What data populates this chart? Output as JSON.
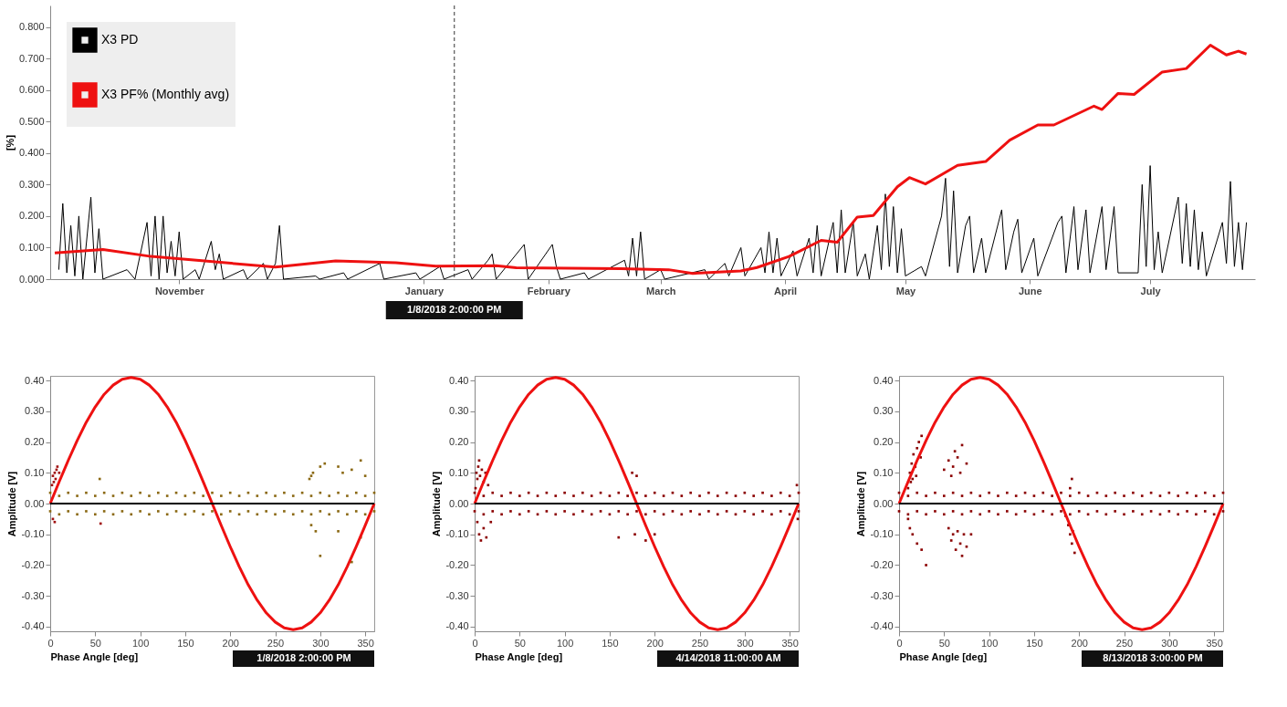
{
  "chart_data": [
    {
      "type": "line",
      "ylabel": "[%]",
      "legend": "top left",
      "xlim": [
        "2017-10-01",
        "2018-07-26"
      ],
      "xticks": [
        {
          "value": "2017-11-01",
          "label": "November"
        },
        {
          "value": "2018-01-01",
          "label": "January"
        },
        {
          "value": "2018-02-01",
          "label": "February"
        },
        {
          "value": "2018-03-01",
          "label": "March"
        },
        {
          "value": "2018-04-01",
          "label": "April"
        },
        {
          "value": "2018-05-01",
          "label": "May"
        },
        {
          "value": "2018-06-01",
          "label": "June"
        },
        {
          "value": "2018-07-01",
          "label": "July"
        }
      ],
      "ylim": [
        0,
        0.868
      ],
      "yticks": [
        {
          "value": 0,
          "label": "0.000"
        },
        {
          "value": 0.1,
          "label": "0.100"
        },
        {
          "value": 0.2,
          "label": "0.200"
        },
        {
          "value": 0.3,
          "label": "0.300"
        },
        {
          "value": 0.4,
          "label": "0.400"
        },
        {
          "value": 0.5,
          "label": "0.500"
        },
        {
          "value": 0.6,
          "label": "0.600"
        },
        {
          "value": 0.7,
          "label": "0.700"
        },
        {
          "value": 0.8,
          "label": "0.800"
        }
      ],
      "ref_lines": [
        {
          "axis": "x",
          "value": "2018-01-08T14:00",
          "label": "1/8/2018 2:00:00 PM",
          "color": "#333333",
          "line_style": "dashed"
        }
      ],
      "series": [
        {
          "name": "X3 PD",
          "color": "#000000",
          "x": [
            "2017-10-02",
            "2017-10-03",
            "2017-10-04",
            "2017-10-05",
            "2017-10-06",
            "2017-10-07",
            "2017-10-08",
            "2017-10-10",
            "2017-10-11",
            "2017-10-12",
            "2017-10-13",
            "2017-10-19",
            "2017-10-21",
            "2017-10-24",
            "2017-10-25",
            "2017-10-26",
            "2017-10-27",
            "2017-10-28",
            "2017-10-29",
            "2017-10-30",
            "2017-10-31",
            "2017-11-01",
            "2017-11-02",
            "2017-11-05",
            "2017-11-06",
            "2017-11-09",
            "2017-11-10",
            "2017-11-11",
            "2017-11-12",
            "2017-11-17",
            "2017-11-18",
            "2017-11-22",
            "2017-11-23",
            "2017-11-25",
            "2017-11-26",
            "2017-11-27",
            "2017-12-05",
            "2017-12-06",
            "2017-12-12",
            "2017-12-13",
            "2017-12-21",
            "2017-12-22",
            "2017-12-30",
            "2017-12-31",
            "2018-01-05",
            "2018-01-06",
            "2018-01-12",
            "2018-01-13",
            "2018-01-17",
            "2018-01-18",
            "2018-01-19",
            "2018-01-26",
            "2018-01-27",
            "2018-02-02",
            "2018-02-03",
            "2018-02-04",
            "2018-02-10",
            "2018-02-11",
            "2018-02-20",
            "2018-02-21",
            "2018-02-22",
            "2018-02-23",
            "2018-02-24",
            "2018-02-25",
            "2018-03-01",
            "2018-03-02",
            "2018-03-12",
            "2018-03-13",
            "2018-03-17",
            "2018-03-18",
            "2018-03-21",
            "2018-03-22",
            "2018-03-26",
            "2018-03-27",
            "2018-03-28",
            "2018-03-29",
            "2018-03-30",
            "2018-03-31",
            "2018-04-03",
            "2018-04-04",
            "2018-04-07",
            "2018-04-08",
            "2018-04-09",
            "2018-04-10",
            "2018-04-13",
            "2018-04-14",
            "2018-04-15",
            "2018-04-16",
            "2018-04-18",
            "2018-04-19",
            "2018-04-21",
            "2018-04-22",
            "2018-04-24",
            "2018-04-25",
            "2018-04-26",
            "2018-04-27",
            "2018-04-28",
            "2018-04-29",
            "2018-04-30",
            "2018-05-01",
            "2018-05-05",
            "2018-05-06",
            "2018-05-10",
            "2018-05-11",
            "2018-05-12",
            "2018-05-13",
            "2018-05-14",
            "2018-05-16",
            "2018-05-17",
            "2018-05-18",
            "2018-05-20",
            "2018-05-21",
            "2018-05-25",
            "2018-05-26",
            "2018-05-28",
            "2018-05-29",
            "2018-05-30",
            "2018-06-02",
            "2018-06-03",
            "2018-06-08",
            "2018-06-09",
            "2018-06-10",
            "2018-06-12",
            "2018-06-13",
            "2018-06-15",
            "2018-06-16",
            "2018-06-19",
            "2018-06-20",
            "2018-06-22",
            "2018-06-23",
            "2018-06-28",
            "2018-06-29",
            "2018-06-30",
            "2018-07-01",
            "2018-07-02",
            "2018-07-03",
            "2018-07-04",
            "2018-07-08",
            "2018-07-09",
            "2018-07-10",
            "2018-07-11",
            "2018-07-12",
            "2018-07-13",
            "2018-07-14",
            "2018-07-15",
            "2018-07-19",
            "2018-07-20",
            "2018-07-21",
            "2018-07-22",
            "2018-07-23",
            "2018-07-24",
            "2018-07-25"
          ],
          "values": [
            0.03,
            0.24,
            0.02,
            0.17,
            0.01,
            0.2,
            0,
            0.26,
            0.02,
            0.16,
            0,
            0.03,
            0,
            0.18,
            0.01,
            0.2,
            0,
            0.2,
            0.02,
            0.12,
            0.01,
            0.15,
            0,
            0.03,
            0,
            0.12,
            0.03,
            0.08,
            0,
            0.03,
            0,
            0.05,
            0,
            0.05,
            0.17,
            0,
            0.01,
            0,
            0.02,
            0,
            0.05,
            0,
            0.02,
            0,
            0.04,
            0,
            0.03,
            0,
            0.06,
            0.08,
            0,
            0.11,
            0,
            0.11,
            0.04,
            0,
            0.02,
            0,
            0.06,
            0.01,
            0.13,
            0.01,
            0.15,
            0,
            0.03,
            0,
            0.03,
            0,
            0.05,
            0.01,
            0.1,
            0.01,
            0.1,
            0.02,
            0.15,
            0.02,
            0.13,
            0.01,
            0.09,
            0.01,
            0.13,
            0.02,
            0.17,
            0.01,
            0.18,
            0.02,
            0.22,
            0.02,
            0.18,
            0.01,
            0.08,
            0,
            0.17,
            0.03,
            0.27,
            0.04,
            0.23,
            0.02,
            0.16,
            0.01,
            0.04,
            0.01,
            0.2,
            0.32,
            0.04,
            0.28,
            0.02,
            0.17,
            0.2,
            0.02,
            0.13,
            0.02,
            0.22,
            0.03,
            0.15,
            0.19,
            0.02,
            0.13,
            0.01,
            0.18,
            0.2,
            0.02,
            0.23,
            0.03,
            0.22,
            0.02,
            0.23,
            0.03,
            0.23,
            0.02,
            0.02,
            0.3,
            0.04,
            0.36,
            0.03,
            0.15,
            0.02,
            0.26,
            0.05,
            0.24,
            0.04,
            0.22,
            0.03,
            0.15,
            0.01,
            0.18,
            0.05,
            0.31,
            0.04,
            0.18,
            0.03,
            0.18
          ]
        },
        {
          "name": "X3 PF% (Monthly avg)",
          "color": "#ee1111",
          "x": [
            "2017-10-01",
            "2017-10-13",
            "2017-10-25",
            "2017-11-08",
            "2017-11-25",
            "2017-12-10",
            "2017-12-25",
            "2018-01-04",
            "2018-01-19",
            "2018-01-24",
            "2018-02-19",
            "2018-03-03",
            "2018-03-09",
            "2018-03-21",
            "2018-03-25",
            "2018-04-02",
            "2018-04-10",
            "2018-04-14",
            "2018-04-19",
            "2018-04-23",
            "2018-04-29",
            "2018-05-02",
            "2018-05-06",
            "2018-05-14",
            "2018-05-21",
            "2018-05-27",
            "2018-06-03",
            "2018-06-07",
            "2018-06-17",
            "2018-06-19",
            "2018-06-23",
            "2018-06-27",
            "2018-07-04",
            "2018-07-10",
            "2018-07-16",
            "2018-07-20",
            "2018-07-23",
            "2018-07-25"
          ],
          "values": [
            0.083,
            0.094,
            0.072,
            0.057,
            0.038,
            0.058,
            0.052,
            0.041,
            0.043,
            0.036,
            0.033,
            0.03,
            0.018,
            0.026,
            0.037,
            0.072,
            0.123,
            0.117,
            0.197,
            0.202,
            0.293,
            0.322,
            0.302,
            0.361,
            0.373,
            0.441,
            0.489,
            0.489,
            0.549,
            0.538,
            0.589,
            0.586,
            0.657,
            0.668,
            0.742,
            0.711,
            0.723,
            0.714
          ]
        }
      ]
    },
    {
      "type": "scatter",
      "xlabel": "Phase Angle [deg]",
      "ylabel": "Amplitude [V]",
      "xlim": [
        0,
        360
      ],
      "xticks": [
        0,
        50,
        100,
        150,
        200,
        250,
        300,
        350
      ],
      "ylim": [
        -0.415,
        0.415
      ],
      "yticks": [
        {
          "value": 0.4,
          "label": "0.40"
        },
        {
          "value": 0.3,
          "label": "0.30"
        },
        {
          "value": 0.2,
          "label": "0.20"
        },
        {
          "value": 0.1,
          "label": "0.10"
        },
        {
          "value": 0,
          "label": "0.00"
        },
        {
          "value": -0.1,
          "label": "-0.10"
        },
        {
          "value": -0.2,
          "label": "-0.20"
        },
        {
          "value": -0.3,
          "label": "-0.30"
        },
        {
          "value": -0.4,
          "label": "-0.40"
        }
      ],
      "ref_lines": [
        {
          "axis": "y",
          "value": 0,
          "color": "#000000"
        }
      ],
      "annotations": [
        "1/8/2018 2:00:00 PM"
      ],
      "series": [
        {
          "marker": "square",
          "color": "#8b6914",
          "x": [
            0,
            10,
            20,
            30,
            40,
            50,
            60,
            70,
            80,
            90,
            100,
            110,
            120,
            130,
            140,
            150,
            160,
            170,
            180,
            190,
            200,
            210,
            220,
            230,
            240,
            250,
            260,
            270,
            280,
            290,
            300,
            310,
            320,
            330,
            340,
            350,
            360,
            0,
            10,
            20,
            30,
            40,
            50,
            60,
            70,
            80,
            90,
            100,
            110,
            120,
            130,
            140,
            150,
            160,
            170,
            180,
            190,
            200,
            210,
            220,
            230,
            240,
            250,
            260,
            270,
            280,
            290,
            300,
            310,
            320,
            330,
            340,
            350,
            360,
            290,
            292,
            288,
            300,
            305,
            320,
            325,
            335,
            345,
            350,
            290,
            295,
            300,
            320,
            335,
            345,
            55
          ],
          "values": [
            0.035,
            0.025,
            0.035,
            0.025,
            0.035,
            0.025,
            0.035,
            0.025,
            0.035,
            0.025,
            0.035,
            0.025,
            0.035,
            0.025,
            0.035,
            0.025,
            0.035,
            0.025,
            0.035,
            0.025,
            0.035,
            0.025,
            0.035,
            0.025,
            0.035,
            0.025,
            0.035,
            0.025,
            0.035,
            0.025,
            0.035,
            0.025,
            0.035,
            0.025,
            0.035,
            0.025,
            0.035,
            -0.025,
            -0.035,
            -0.025,
            -0.035,
            -0.025,
            -0.035,
            -0.025,
            -0.035,
            -0.025,
            -0.035,
            -0.025,
            -0.035,
            -0.025,
            -0.035,
            -0.025,
            -0.035,
            -0.025,
            -0.035,
            -0.025,
            -0.035,
            -0.025,
            -0.035,
            -0.025,
            -0.035,
            -0.025,
            -0.035,
            -0.025,
            -0.035,
            -0.025,
            -0.035,
            -0.025,
            -0.035,
            -0.025,
            -0.035,
            -0.025,
            -0.035,
            -0.025,
            0.09,
            0.1,
            0.08,
            0.12,
            0.13,
            0.12,
            0.1,
            0.11,
            0.14,
            0.09,
            -0.07,
            -0.09,
            -0.17,
            -0.09,
            -0.19,
            -0.11,
            0.08
          ]
        },
        {
          "marker": "square",
          "color": "#a01010",
          "x": [
            2,
            3,
            4,
            5,
            6,
            7,
            8,
            10,
            3,
            5,
            56
          ],
          "values": [
            0.06,
            0.09,
            0.07,
            0.1,
            0.08,
            0.11,
            0.12,
            0.1,
            -0.05,
            -0.06,
            -0.065
          ]
        },
        {
          "type": "line",
          "color": "#ee1111",
          "x": [
            0,
            10,
            20,
            30,
            40,
            50,
            60,
            70,
            80,
            90,
            100,
            110,
            120,
            130,
            140,
            150,
            160,
            170,
            180,
            190,
            200,
            210,
            220,
            230,
            240,
            250,
            260,
            270,
            280,
            290,
            300,
            310,
            320,
            330,
            340,
            350,
            360
          ],
          "values": [
            0,
            0.071,
            0.14,
            0.205,
            0.264,
            0.314,
            0.355,
            0.385,
            0.404,
            0.41,
            0.404,
            0.385,
            0.355,
            0.314,
            0.264,
            0.205,
            0.14,
            0.071,
            0,
            -0.071,
            -0.14,
            -0.205,
            -0.264,
            -0.314,
            -0.355,
            -0.385,
            -0.404,
            -0.41,
            -0.404,
            -0.385,
            -0.355,
            -0.314,
            -0.264,
            -0.205,
            -0.14,
            -0.071,
            0
          ]
        }
      ]
    },
    {
      "type": "scatter",
      "xlabel": "Phase Angle [deg]",
      "ylabel": "Amplitude [V]",
      "xlim": [
        0,
        360
      ],
      "xticks": [
        0,
        50,
        100,
        150,
        200,
        250,
        300,
        350
      ],
      "ylim": [
        -0.415,
        0.415
      ],
      "yticks": [
        {
          "value": 0.4,
          "label": "0.40"
        },
        {
          "value": 0.3,
          "label": "0.30"
        },
        {
          "value": 0.2,
          "label": "0.20"
        },
        {
          "value": 0.1,
          "label": "0.10"
        },
        {
          "value": 0,
          "label": "0.00"
        },
        {
          "value": -0.1,
          "label": "-0.10"
        },
        {
          "value": -0.2,
          "label": "-0.20"
        },
        {
          "value": -0.3,
          "label": "-0.30"
        },
        {
          "value": -0.4,
          "label": "-0.40"
        }
      ],
      "ref_lines": [
        {
          "axis": "y",
          "value": 0,
          "color": "#000000"
        }
      ],
      "annotations": [
        "4/14/2018 11:00:00 AM"
      ],
      "series": [
        {
          "marker": "square",
          "color": "#8b0000",
          "x": [
            0,
            10,
            20,
            30,
            40,
            50,
            60,
            70,
            80,
            90,
            100,
            110,
            120,
            130,
            140,
            150,
            160,
            170,
            180,
            190,
            200,
            210,
            220,
            230,
            240,
            250,
            260,
            270,
            280,
            290,
            300,
            310,
            320,
            330,
            340,
            350,
            360,
            0,
            10,
            20,
            30,
            40,
            50,
            60,
            70,
            80,
            90,
            100,
            110,
            120,
            130,
            140,
            150,
            160,
            170,
            180,
            190,
            200,
            210,
            220,
            230,
            240,
            250,
            260,
            270,
            280,
            290,
            300,
            310,
            320,
            330,
            340,
            350,
            360,
            1,
            2,
            3,
            4,
            5,
            6,
            8,
            10,
            12,
            15,
            3,
            5,
            7,
            10,
            13,
            18,
            175,
            180,
            178,
            190,
            200,
            160,
            358,
            359
          ],
          "values": [
            0.035,
            0.025,
            0.035,
            0.025,
            0.035,
            0.025,
            0.035,
            0.025,
            0.035,
            0.025,
            0.035,
            0.025,
            0.035,
            0.025,
            0.035,
            0.025,
            0.035,
            0.025,
            0.035,
            0.025,
            0.035,
            0.025,
            0.035,
            0.025,
            0.035,
            0.025,
            0.035,
            0.025,
            0.035,
            0.025,
            0.035,
            0.025,
            0.035,
            0.025,
            0.035,
            0.025,
            0.035,
            -0.025,
            -0.035,
            -0.025,
            -0.035,
            -0.025,
            -0.035,
            -0.025,
            -0.035,
            -0.025,
            -0.035,
            -0.025,
            -0.035,
            -0.025,
            -0.035,
            -0.025,
            -0.035,
            -0.025,
            -0.035,
            -0.025,
            -0.035,
            -0.025,
            -0.035,
            -0.025,
            -0.035,
            -0.025,
            -0.035,
            -0.025,
            -0.035,
            -0.025,
            -0.035,
            -0.025,
            -0.035,
            -0.025,
            -0.035,
            -0.025,
            -0.035,
            -0.025,
            0.05,
            0.1,
            0.08,
            0.12,
            0.14,
            0.09,
            0.11,
            0.07,
            0.1,
            0.06,
            -0.06,
            -0.1,
            -0.12,
            -0.08,
            -0.11,
            -0.06,
            0.1,
            0.09,
            -0.1,
            -0.12,
            -0.1,
            -0.11,
            0.06,
            -0.05
          ]
        },
        {
          "type": "line",
          "color": "#ee1111",
          "x": [
            0,
            10,
            20,
            30,
            40,
            50,
            60,
            70,
            80,
            90,
            100,
            110,
            120,
            130,
            140,
            150,
            160,
            170,
            180,
            190,
            200,
            210,
            220,
            230,
            240,
            250,
            260,
            270,
            280,
            290,
            300,
            310,
            320,
            330,
            340,
            350,
            360
          ],
          "values": [
            0,
            0.071,
            0.14,
            0.205,
            0.264,
            0.314,
            0.355,
            0.385,
            0.404,
            0.41,
            0.404,
            0.385,
            0.355,
            0.314,
            0.264,
            0.205,
            0.14,
            0.071,
            0,
            -0.071,
            -0.14,
            -0.205,
            -0.264,
            -0.314,
            -0.355,
            -0.385,
            -0.404,
            -0.41,
            -0.404,
            -0.385,
            -0.355,
            -0.314,
            -0.264,
            -0.205,
            -0.14,
            -0.071,
            0
          ]
        }
      ]
    },
    {
      "type": "scatter",
      "xlabel": "Phase Angle [deg]",
      "ylabel": "Amplitude [V]",
      "xlim": [
        0,
        360
      ],
      "xticks": [
        0,
        50,
        100,
        150,
        200,
        250,
        300,
        350
      ],
      "ylim": [
        -0.415,
        0.415
      ],
      "yticks": [
        {
          "value": 0.4,
          "label": "0.40"
        },
        {
          "value": 0.3,
          "label": "0.30"
        },
        {
          "value": 0.2,
          "label": "0.20"
        },
        {
          "value": 0.1,
          "label": "0.10"
        },
        {
          "value": 0,
          "label": "0.00"
        },
        {
          "value": -0.1,
          "label": "-0.10"
        },
        {
          "value": -0.2,
          "label": "-0.20"
        },
        {
          "value": -0.3,
          "label": "-0.30"
        },
        {
          "value": -0.4,
          "label": "-0.40"
        }
      ],
      "ref_lines": [
        {
          "axis": "y",
          "value": 0,
          "color": "#000000"
        }
      ],
      "annotations": [
        "8/13/2018 3:00:00 PM"
      ],
      "series": [
        {
          "marker": "square",
          "color": "#8b0000",
          "x": [
            0,
            10,
            20,
            30,
            40,
            50,
            60,
            70,
            80,
            90,
            100,
            110,
            120,
            130,
            140,
            150,
            160,
            170,
            180,
            190,
            200,
            210,
            220,
            230,
            240,
            250,
            260,
            270,
            280,
            290,
            300,
            310,
            320,
            330,
            340,
            350,
            360,
            0,
            10,
            20,
            30,
            40,
            50,
            60,
            70,
            80,
            90,
            100,
            110,
            120,
            130,
            140,
            150,
            160,
            170,
            180,
            190,
            200,
            210,
            220,
            230,
            240,
            250,
            260,
            270,
            280,
            290,
            300,
            310,
            320,
            330,
            340,
            350,
            360,
            10,
            12,
            14,
            15,
            16,
            18,
            20,
            22,
            24,
            25,
            13,
            19,
            10,
            12,
            15,
            20,
            25,
            30,
            50,
            55,
            58,
            60,
            62,
            65,
            68,
            70,
            75,
            55,
            58,
            60,
            63,
            65,
            68,
            70,
            72,
            75,
            80,
            185,
            188,
            190,
            192,
            195,
            193,
            190,
            192
          ],
          "values": [
            0.035,
            0.025,
            0.035,
            0.025,
            0.035,
            0.025,
            0.035,
            0.025,
            0.035,
            0.025,
            0.035,
            0.025,
            0.035,
            0.025,
            0.035,
            0.025,
            0.035,
            0.025,
            0.035,
            0.025,
            0.035,
            0.025,
            0.035,
            0.025,
            0.035,
            0.025,
            0.035,
            0.025,
            0.035,
            0.025,
            0.035,
            0.025,
            0.035,
            0.025,
            0.035,
            0.025,
            0.035,
            -0.025,
            -0.035,
            -0.025,
            -0.035,
            -0.025,
            -0.035,
            -0.025,
            -0.035,
            -0.025,
            -0.035,
            -0.025,
            -0.035,
            -0.025,
            -0.035,
            -0.025,
            -0.035,
            -0.025,
            -0.035,
            -0.025,
            -0.035,
            -0.025,
            -0.035,
            -0.025,
            -0.035,
            -0.025,
            -0.035,
            -0.025,
            -0.035,
            -0.025,
            -0.035,
            -0.025,
            -0.035,
            -0.025,
            -0.035,
            -0.025,
            -0.035,
            -0.025,
            0.05,
            0.1,
            0.13,
            0.08,
            0.16,
            0.12,
            0.18,
            0.2,
            0.15,
            0.22,
            0.07,
            0.09,
            -0.05,
            -0.08,
            -0.1,
            -0.13,
            -0.15,
            -0.2,
            0.11,
            0.14,
            0.09,
            0.12,
            0.17,
            0.15,
            0.1,
            0.19,
            0.13,
            -0.08,
            -0.12,
            -0.1,
            -0.15,
            -0.09,
            -0.13,
            -0.17,
            -0.1,
            -0.14,
            -0.1,
            -0.04,
            -0.07,
            -0.1,
            -0.13,
            -0.16,
            -0.09,
            0.05,
            0.08
          ]
        },
        {
          "type": "line",
          "color": "#ee1111",
          "x": [
            0,
            10,
            20,
            30,
            40,
            50,
            60,
            70,
            80,
            90,
            100,
            110,
            120,
            130,
            140,
            150,
            160,
            170,
            180,
            190,
            200,
            210,
            220,
            230,
            240,
            250,
            260,
            270,
            280,
            290,
            300,
            310,
            320,
            330,
            340,
            350,
            360
          ],
          "values": [
            0,
            0.071,
            0.14,
            0.205,
            0.264,
            0.314,
            0.355,
            0.385,
            0.404,
            0.41,
            0.404,
            0.385,
            0.355,
            0.314,
            0.264,
            0.205,
            0.14,
            0.071,
            0,
            -0.071,
            -0.14,
            -0.205,
            -0.264,
            -0.314,
            -0.355,
            -0.385,
            -0.404,
            -0.41,
            -0.404,
            -0.385,
            -0.355,
            -0.314,
            -0.264,
            -0.205,
            -0.14,
            -0.071,
            0
          ]
        }
      ]
    }
  ]
}
